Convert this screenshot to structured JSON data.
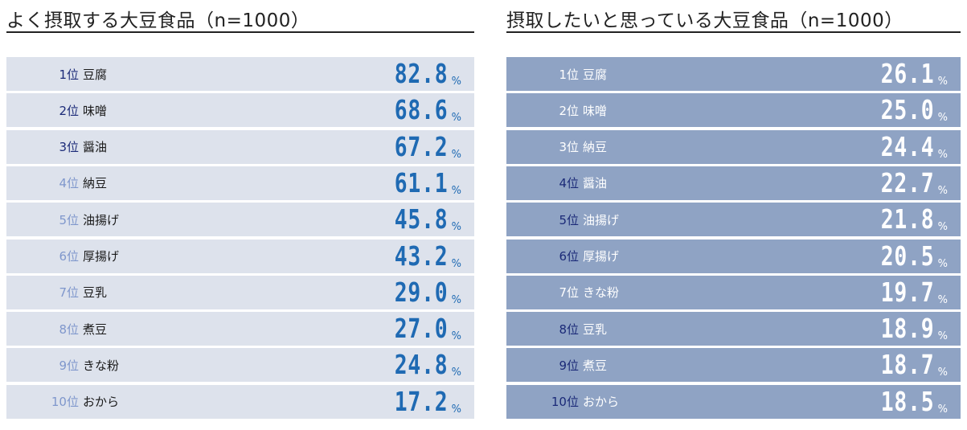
{
  "chart_data": [
    {
      "type": "table",
      "title": "よく摂取する大豆食品（n=1000）",
      "unit": "%",
      "rank_suffix": "位",
      "rows": [
        {
          "rank": "1",
          "food": "豆腐",
          "value": "82.8",
          "rank_color": "#1b2a78"
        },
        {
          "rank": "2",
          "food": "味噌",
          "value": "68.6",
          "rank_color": "#1b2a78"
        },
        {
          "rank": "3",
          "food": "醤油",
          "value": "67.2",
          "rank_color": "#1b2a78"
        },
        {
          "rank": "4",
          "food": "納豆",
          "value": "61.1",
          "rank_color": "#7f97cc"
        },
        {
          "rank": "5",
          "food": "油揚げ",
          "value": "45.8",
          "rank_color": "#7f97cc"
        },
        {
          "rank": "6",
          "food": "厚揚げ",
          "value": "43.2",
          "rank_color": "#7f97cc"
        },
        {
          "rank": "7",
          "food": "豆乳",
          "value": "29.0",
          "rank_color": "#7f97cc"
        },
        {
          "rank": "8",
          "food": "煮豆",
          "value": "27.0",
          "rank_color": "#7f97cc"
        },
        {
          "rank": "9",
          "food": "きな粉",
          "value": "24.8",
          "rank_color": "#7f97cc"
        },
        {
          "rank": "10",
          "food": "おから",
          "value": "17.2",
          "rank_color": "#7f97cc"
        }
      ]
    },
    {
      "type": "table",
      "title": "摂取したいと思っている大豆食品（n=1000）",
      "unit": "%",
      "rank_suffix": "位",
      "rows": [
        {
          "rank": "1",
          "food": "豆腐",
          "value": "26.1",
          "rank_color": "#ffffff"
        },
        {
          "rank": "2",
          "food": "味噌",
          "value": "25.0",
          "rank_color": "#ffffff"
        },
        {
          "rank": "3",
          "food": "納豆",
          "value": "24.4",
          "rank_color": "#ffffff"
        },
        {
          "rank": "4",
          "food": "醤油",
          "value": "22.7",
          "rank_color": "#1b2a78"
        },
        {
          "rank": "5",
          "food": "油揚げ",
          "value": "21.8",
          "rank_color": "#1b2a78"
        },
        {
          "rank": "6",
          "food": "厚揚げ",
          "value": "20.5",
          "rank_color": "#1b2a78"
        },
        {
          "rank": "7",
          "food": "きな粉",
          "value": "19.7",
          "rank_color": "#ffffff"
        },
        {
          "rank": "8",
          "food": "豆乳",
          "value": "18.9",
          "rank_color": "#1b2a78"
        },
        {
          "rank": "9",
          "food": "煮豆",
          "value": "18.7",
          "rank_color": "#1b2a78"
        },
        {
          "rank": "10",
          "food": "おから",
          "value": "18.5",
          "rank_color": "#1b2a78"
        }
      ]
    }
  ]
}
